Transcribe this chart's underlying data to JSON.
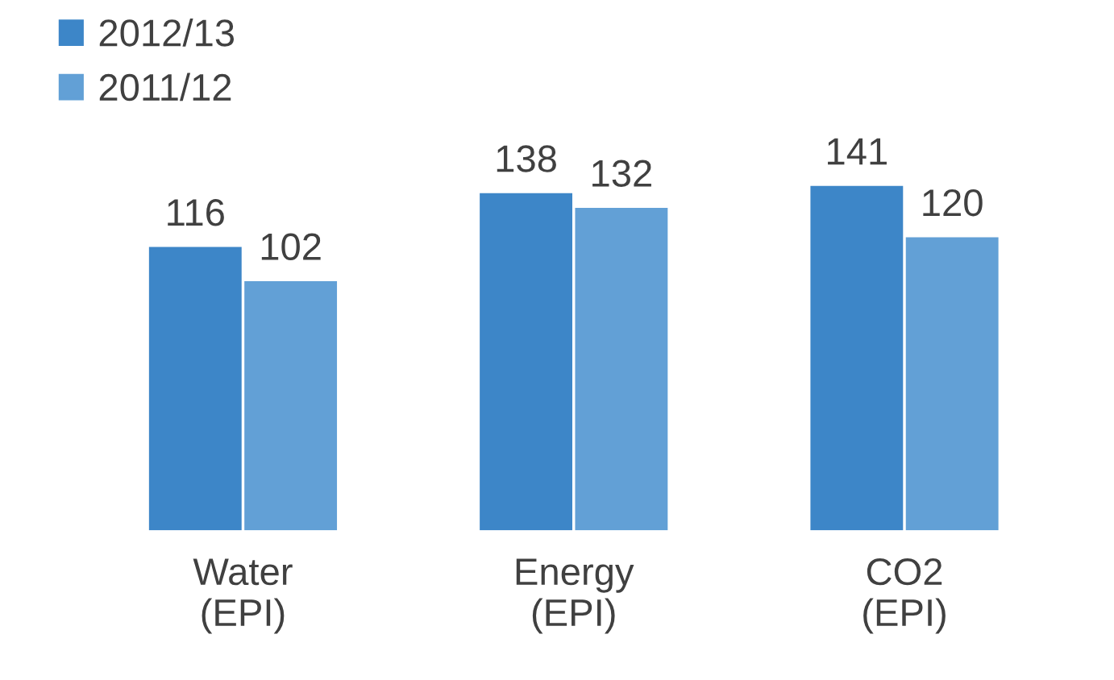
{
  "chart_data": {
    "type": "bar",
    "categories": [
      "Water\n(EPI)",
      "Energy\n(EPI)",
      "CO2\n(EPI)"
    ],
    "series": [
      {
        "name": "2012/13",
        "color": "#3d86c8",
        "values": [
          116,
          138,
          141
        ]
      },
      {
        "name": "2011/12",
        "color": "#62a0d6",
        "values": [
          102,
          132,
          120
        ]
      }
    ],
    "data_labels": true,
    "legend": "top left",
    "grid": false
  }
}
